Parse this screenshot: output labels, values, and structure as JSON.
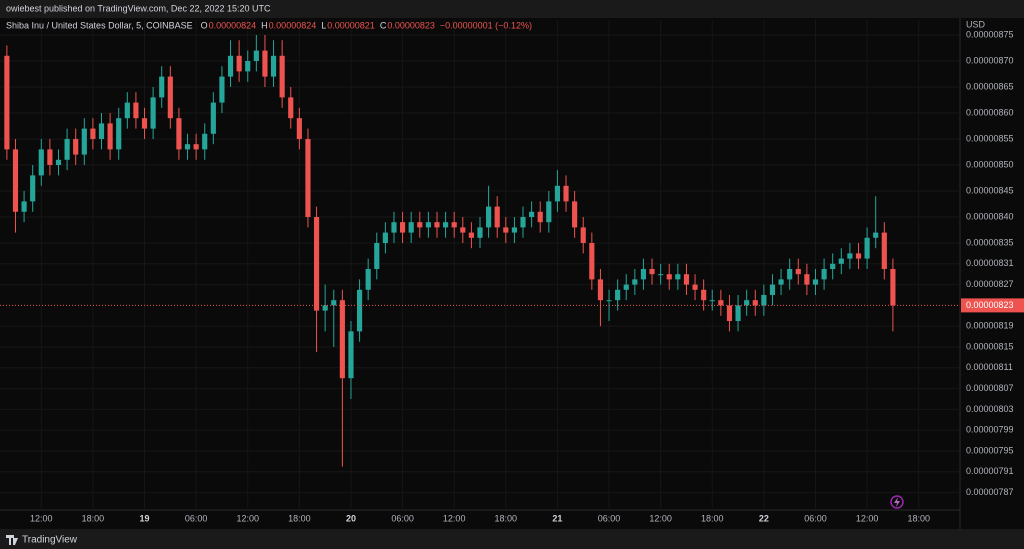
{
  "header": {
    "text": "owiebest published on TradingView.com, Dec 22, 2022 15:20 UTC"
  },
  "footer": {
    "brand": "TradingView"
  },
  "chart_data": {
    "type": "candlestick",
    "title": "Shiba Inu / United States Dollar, 5, COINBASE",
    "ohlc_legend": [
      {
        "key": "O",
        "value": "0.00000824"
      },
      {
        "key": "H",
        "value": "0.00000824"
      },
      {
        "key": "L",
        "value": "0.00000821"
      },
      {
        "key": "C",
        "value": "0.00000823"
      }
    ],
    "change": "−0.00000001 (−0.12%)",
    "y_axis_label": "USD",
    "up_color": "#26a69a",
    "down_color": "#ef5350",
    "grid": true,
    "x": [
      8,
      9,
      10,
      11,
      12,
      13,
      14,
      15,
      16,
      17,
      18,
      19,
      20,
      21,
      22,
      23,
      24,
      25,
      26,
      27,
      28,
      29,
      30,
      31,
      32,
      33,
      34,
      35,
      36,
      37,
      38,
      39,
      40,
      41,
      42,
      43,
      44,
      45,
      46,
      47,
      48,
      49,
      50,
      51,
      52,
      53,
      54,
      55,
      56,
      57,
      58,
      59,
      60,
      61,
      62,
      63,
      64,
      65,
      66,
      67,
      68,
      69,
      70,
      71,
      72,
      73,
      74,
      75,
      76,
      77,
      78,
      79,
      80,
      81,
      82,
      83,
      84,
      85,
      86,
      87,
      88,
      89,
      90,
      91,
      92,
      93,
      94,
      95,
      96,
      97,
      98,
      99,
      100,
      101,
      102,
      103,
      104,
      105,
      106,
      107,
      108,
      109,
      110,
      111
    ],
    "open": [
      8.71e-06,
      8.53e-06,
      8.41e-06,
      8.43e-06,
      8.48e-06,
      8.53e-06,
      8.5e-06,
      8.51e-06,
      8.55e-06,
      8.52e-06,
      8.57e-06,
      8.55e-06,
      8.58e-06,
      8.53e-06,
      8.59e-06,
      8.62e-06,
      8.59e-06,
      8.57e-06,
      8.63e-06,
      8.67e-06,
      8.59e-06,
      8.53e-06,
      8.54e-06,
      8.53e-06,
      8.56e-06,
      8.62e-06,
      8.67e-06,
      8.71e-06,
      8.68e-06,
      8.7e-06,
      8.72e-06,
      8.67e-06,
      8.71e-06,
      8.63e-06,
      8.59e-06,
      8.55e-06,
      8.4e-06,
      8.22e-06,
      8.23e-06,
      8.24e-06,
      8.09e-06,
      8.18e-06,
      8.26e-06,
      8.3e-06,
      8.35e-06,
      8.37e-06,
      8.39e-06,
      8.37e-06,
      8.39e-06,
      8.38e-06,
      8.39e-06,
      8.38e-06,
      8.39e-06,
      8.38e-06,
      8.37e-06,
      8.36e-06,
      8.38e-06,
      8.42e-06,
      8.38e-06,
      8.37e-06,
      8.38e-06,
      8.4e-06,
      8.41e-06,
      8.39e-06,
      8.43e-06,
      8.46e-06,
      8.43e-06,
      8.38e-06,
      8.35e-06,
      8.28e-06,
      8.24e-06,
      8.24e-06,
      8.26e-06,
      8.27e-06,
      8.28e-06,
      8.3e-06,
      8.29e-06,
      8.29e-06,
      8.28e-06,
      8.29e-06,
      8.27e-06,
      8.26e-06,
      8.24e-06,
      8.24e-06,
      8.23e-06,
      8.2e-06,
      8.23e-06,
      8.24e-06,
      8.23e-06,
      8.25e-06,
      8.27e-06,
      8.28e-06,
      8.3e-06,
      8.29e-06,
      8.27e-06,
      8.28e-06,
      8.3e-06,
      8.31e-06,
      8.32e-06,
      8.33e-06,
      8.32e-06,
      8.36e-06,
      8.37e-06,
      8.3e-06
    ],
    "high": [
      8.73e-06,
      8.55e-06,
      8.45e-06,
      8.5e-06,
      8.55e-06,
      8.55e-06,
      8.53e-06,
      8.57e-06,
      8.57e-06,
      8.59e-06,
      8.59e-06,
      8.6e-06,
      8.6e-06,
      8.61e-06,
      8.64e-06,
      8.64e-06,
      8.61e-06,
      8.65e-06,
      8.69e-06,
      8.69e-06,
      8.61e-06,
      8.56e-06,
      8.56e-06,
      8.58e-06,
      8.64e-06,
      8.69e-06,
      8.74e-06,
      8.74e-06,
      8.72e-06,
      8.75e-06,
      8.75e-06,
      8.74e-06,
      8.74e-06,
      8.65e-06,
      8.61e-06,
      8.57e-06,
      8.42e-06,
      8.27e-06,
      8.26e-06,
      8.26e-06,
      8.2e-06,
      8.28e-06,
      8.32e-06,
      8.37e-06,
      8.39e-06,
      8.41e-06,
      8.41e-06,
      8.41e-06,
      8.41e-06,
      8.41e-06,
      8.41e-06,
      8.41e-06,
      8.41e-06,
      8.4e-06,
      8.39e-06,
      8.4e-06,
      8.46e-06,
      8.44e-06,
      8.4e-06,
      8.4e-06,
      8.42e-06,
      8.43e-06,
      8.43e-06,
      8.45e-06,
      8.49e-06,
      8.48e-06,
      8.45e-06,
      8.4e-06,
      8.37e-06,
      8.3e-06,
      8.26e-06,
      8.28e-06,
      8.29e-06,
      8.3e-06,
      8.32e-06,
      8.32e-06,
      8.31e-06,
      8.31e-06,
      8.31e-06,
      8.31e-06,
      8.29e-06,
      8.28e-06,
      8.26e-06,
      8.26e-06,
      8.25e-06,
      8.25e-06,
      8.26e-06,
      8.26e-06,
      8.27e-06,
      8.29e-06,
      8.3e-06,
      8.32e-06,
      8.32e-06,
      8.31e-06,
      8.3e-06,
      8.32e-06,
      8.33e-06,
      8.34e-06,
      8.35e-06,
      8.35e-06,
      8.38e-06,
      8.44e-06,
      8.39e-06,
      8.32e-06
    ],
    "low": [
      8.51e-06,
      8.37e-06,
      8.39e-06,
      8.41e-06,
      8.46e-06,
      8.48e-06,
      8.48e-06,
      8.49e-06,
      8.5e-06,
      8.5e-06,
      8.53e-06,
      8.53e-06,
      8.51e-06,
      8.51e-06,
      8.57e-06,
      8.57e-06,
      8.55e-06,
      8.55e-06,
      8.61e-06,
      8.57e-06,
      8.51e-06,
      8.51e-06,
      8.51e-06,
      8.51e-06,
      8.54e-06,
      8.6e-06,
      8.65e-06,
      8.66e-06,
      8.66e-06,
      8.68e-06,
      8.65e-06,
      8.65e-06,
      8.61e-06,
      8.57e-06,
      8.53e-06,
      8.38e-06,
      8.14e-06,
      8.18e-06,
      8.15e-06,
      7.92e-06,
      8.05e-06,
      8.16e-06,
      8.24e-06,
      8.28e-06,
      8.33e-06,
      8.35e-06,
      8.35e-06,
      8.35e-06,
      8.36e-06,
      8.36e-06,
      8.36e-06,
      8.36e-06,
      8.36e-06,
      8.35e-06,
      8.34e-06,
      8.34e-06,
      8.36e-06,
      8.36e-06,
      8.35e-06,
      8.35e-06,
      8.36e-06,
      8.38e-06,
      8.37e-06,
      8.37e-06,
      8.41e-06,
      8.41e-06,
      8.36e-06,
      8.33e-06,
      8.26e-06,
      8.19e-06,
      8.2e-06,
      8.22e-06,
      8.24e-06,
      8.25e-06,
      8.26e-06,
      8.27e-06,
      8.27e-06,
      8.26e-06,
      8.26e-06,
      8.25e-06,
      8.24e-06,
      8.22e-06,
      8.22e-06,
      8.21e-06,
      8.18e-06,
      8.18e-06,
      8.21e-06,
      8.21e-06,
      8.21e-06,
      8.23e-06,
      8.25e-06,
      8.26e-06,
      8.27e-06,
      8.25e-06,
      8.25e-06,
      8.26e-06,
      8.28e-06,
      8.29e-06,
      8.3e-06,
      8.3e-06,
      8.3e-06,
      8.34e-06,
      8.28e-06,
      8.18e-06
    ],
    "close": [
      8.53e-06,
      8.41e-06,
      8.43e-06,
      8.48e-06,
      8.53e-06,
      8.5e-06,
      8.51e-06,
      8.55e-06,
      8.52e-06,
      8.57e-06,
      8.55e-06,
      8.58e-06,
      8.53e-06,
      8.59e-06,
      8.62e-06,
      8.59e-06,
      8.57e-06,
      8.63e-06,
      8.67e-06,
      8.59e-06,
      8.53e-06,
      8.54e-06,
      8.53e-06,
      8.56e-06,
      8.62e-06,
      8.67e-06,
      8.71e-06,
      8.68e-06,
      8.7e-06,
      8.72e-06,
      8.67e-06,
      8.71e-06,
      8.63e-06,
      8.59e-06,
      8.55e-06,
      8.4e-06,
      8.22e-06,
      8.23e-06,
      8.24e-06,
      8.09e-06,
      8.18e-06,
      8.26e-06,
      8.3e-06,
      8.35e-06,
      8.37e-06,
      8.39e-06,
      8.37e-06,
      8.39e-06,
      8.38e-06,
      8.39e-06,
      8.38e-06,
      8.39e-06,
      8.38e-06,
      8.37e-06,
      8.36e-06,
      8.38e-06,
      8.42e-06,
      8.38e-06,
      8.37e-06,
      8.38e-06,
      8.4e-06,
      8.41e-06,
      8.39e-06,
      8.43e-06,
      8.46e-06,
      8.43e-06,
      8.38e-06,
      8.35e-06,
      8.28e-06,
      8.24e-06,
      8.24e-06,
      8.26e-06,
      8.27e-06,
      8.28e-06,
      8.3e-06,
      8.29e-06,
      8.29e-06,
      8.28e-06,
      8.29e-06,
      8.27e-06,
      8.26e-06,
      8.24e-06,
      8.24e-06,
      8.23e-06,
      8.2e-06,
      8.23e-06,
      8.24e-06,
      8.23e-06,
      8.25e-06,
      8.27e-06,
      8.28e-06,
      8.3e-06,
      8.29e-06,
      8.27e-06,
      8.28e-06,
      8.3e-06,
      8.31e-06,
      8.32e-06,
      8.33e-06,
      8.32e-06,
      8.36e-06,
      8.37e-06,
      8.3e-06,
      8.23e-06
    ],
    "xlim": [
      7.2,
      118.8
    ],
    "ylim": [
      7.8365e-06,
      8.7596e-06
    ],
    "xticks": [
      {
        "value": 12,
        "label": "12:00"
      },
      {
        "value": 18,
        "label": "18:00"
      },
      {
        "value": 24,
        "label": "19"
      },
      {
        "value": 30,
        "label": "06:00"
      },
      {
        "value": 36,
        "label": "12:00"
      },
      {
        "value": 42,
        "label": "18:00"
      },
      {
        "value": 48,
        "label": "20"
      },
      {
        "value": 54,
        "label": "06:00"
      },
      {
        "value": 60,
        "label": "12:00"
      },
      {
        "value": 66,
        "label": "18:00"
      },
      {
        "value": 72,
        "label": "21"
      },
      {
        "value": 78,
        "label": "06:00"
      },
      {
        "value": 84,
        "label": "12:00"
      },
      {
        "value": 90,
        "label": "18:00"
      },
      {
        "value": 96,
        "label": "22"
      },
      {
        "value": 102,
        "label": "06:00"
      },
      {
        "value": 108,
        "label": "12:00"
      },
      {
        "value": 114,
        "label": "18:00"
      }
    ],
    "yticks": [
      {
        "value": 8.75e-06,
        "label": "0.00000875"
      },
      {
        "value": 8.7e-06,
        "label": "0.00000870"
      },
      {
        "value": 8.65e-06,
        "label": "0.00000865"
      },
      {
        "value": 8.6e-06,
        "label": "0.00000860"
      },
      {
        "value": 8.55e-06,
        "label": "0.00000855"
      },
      {
        "value": 8.5e-06,
        "label": "0.00000850"
      },
      {
        "value": 8.45e-06,
        "label": "0.00000845"
      },
      {
        "value": 8.4e-06,
        "label": "0.00000840"
      },
      {
        "value": 8.35e-06,
        "label": "0.00000835"
      },
      {
        "value": 8.31e-06,
        "label": "0.00000831"
      },
      {
        "value": 8.27e-06,
        "label": "0.00000827"
      },
      {
        "value": 8.19e-06,
        "label": "0.00000819"
      },
      {
        "value": 8.15e-06,
        "label": "0.00000815"
      },
      {
        "value": 8.11e-06,
        "label": "0.00000811"
      },
      {
        "value": 8.07e-06,
        "label": "0.00000807"
      },
      {
        "value": 8.03e-06,
        "label": "0.00000803"
      },
      {
        "value": 7.99e-06,
        "label": "0.00000799"
      },
      {
        "value": 7.95e-06,
        "label": "0.00000795"
      },
      {
        "value": 7.91e-06,
        "label": "0.00000791"
      },
      {
        "value": 7.87e-06,
        "label": "0.00000787"
      }
    ],
    "last_price": {
      "value": 8.23e-06,
      "label": "0.00000823"
    }
  }
}
